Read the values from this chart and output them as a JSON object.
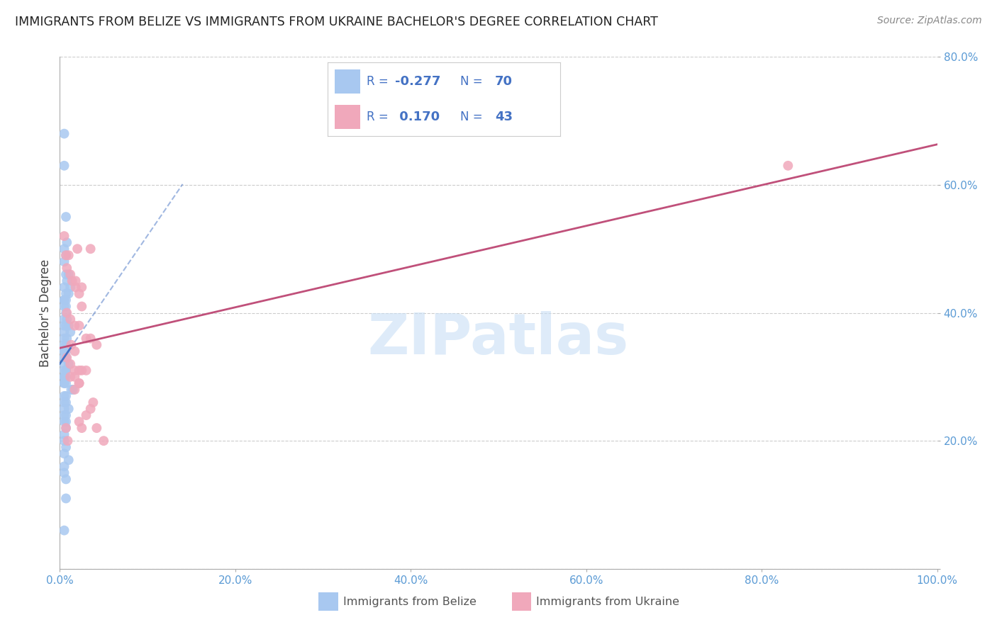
{
  "title": "IMMIGRANTS FROM BELIZE VS IMMIGRANTS FROM UKRAINE BACHELOR'S DEGREE CORRELATION CHART",
  "source": "Source: ZipAtlas.com",
  "ylabel": "Bachelor's Degree",
  "watermark": "ZIPatlas",
  "belize_color": "#a8c8f0",
  "ukraine_color": "#f0a8bb",
  "belize_line_color": "#4472c4",
  "ukraine_line_color": "#c0507a",
  "belize_R": -0.277,
  "belize_N": 70,
  "ukraine_R": 0.17,
  "ukraine_N": 43,
  "xlim": [
    0,
    1.0
  ],
  "ylim": [
    0,
    0.8
  ],
  "xticks": [
    0.0,
    0.2,
    0.4,
    0.6,
    0.8,
    1.0
  ],
  "yticks": [
    0.0,
    0.2,
    0.4,
    0.6,
    0.8
  ],
  "xticklabels": [
    "0.0%",
    "20.0%",
    "40.0%",
    "60.0%",
    "80.0%",
    "100.0%"
  ],
  "yticklabels": [
    "",
    "20.0%",
    "40.0%",
    "60.0%",
    "80.0%"
  ],
  "tick_color": "#5b9bd5",
  "background_color": "#ffffff",
  "grid_color": "#cccccc",
  "belize_x": [
    0.005,
    0.005,
    0.007,
    0.008,
    0.005,
    0.007,
    0.005,
    0.01,
    0.007,
    0.008,
    0.012,
    0.005,
    0.007,
    0.01,
    0.005,
    0.007,
    0.005,
    0.007,
    0.005,
    0.007,
    0.008,
    0.005,
    0.01,
    0.007,
    0.005,
    0.012,
    0.005,
    0.008,
    0.005,
    0.005,
    0.007,
    0.005,
    0.007,
    0.005,
    0.005,
    0.007,
    0.005,
    0.01,
    0.005,
    0.007,
    0.007,
    0.005,
    0.005,
    0.007,
    0.005,
    0.005,
    0.007,
    0.015,
    0.013,
    0.007,
    0.005,
    0.007,
    0.005,
    0.01,
    0.005,
    0.007,
    0.005,
    0.005,
    0.007,
    0.007,
    0.005,
    0.005,
    0.007,
    0.005,
    0.01,
    0.005,
    0.005,
    0.007,
    0.007,
    0.005
  ],
  "belize_y": [
    0.68,
    0.63,
    0.55,
    0.51,
    0.5,
    0.49,
    0.48,
    0.46,
    0.46,
    0.45,
    0.44,
    0.44,
    0.43,
    0.43,
    0.42,
    0.42,
    0.42,
    0.41,
    0.41,
    0.4,
    0.39,
    0.39,
    0.38,
    0.38,
    0.38,
    0.37,
    0.37,
    0.36,
    0.36,
    0.35,
    0.35,
    0.34,
    0.34,
    0.34,
    0.33,
    0.33,
    0.32,
    0.32,
    0.31,
    0.31,
    0.31,
    0.3,
    0.3,
    0.3,
    0.29,
    0.29,
    0.29,
    0.28,
    0.28,
    0.27,
    0.27,
    0.26,
    0.26,
    0.25,
    0.25,
    0.24,
    0.24,
    0.23,
    0.23,
    0.22,
    0.21,
    0.2,
    0.19,
    0.18,
    0.17,
    0.16,
    0.15,
    0.14,
    0.11,
    0.06
  ],
  "ukraine_x": [
    0.005,
    0.007,
    0.01,
    0.02,
    0.035,
    0.008,
    0.012,
    0.014,
    0.018,
    0.022,
    0.025,
    0.018,
    0.025,
    0.008,
    0.012,
    0.017,
    0.022,
    0.03,
    0.042,
    0.013,
    0.017,
    0.022,
    0.017,
    0.012,
    0.025,
    0.035,
    0.008,
    0.012,
    0.017,
    0.022,
    0.017,
    0.022,
    0.03,
    0.042,
    0.05,
    0.022,
    0.03,
    0.025,
    0.035,
    0.038,
    0.83,
    0.007,
    0.009
  ],
  "ukraine_y": [
    0.52,
    0.49,
    0.49,
    0.5,
    0.5,
    0.47,
    0.46,
    0.45,
    0.44,
    0.43,
    0.44,
    0.45,
    0.41,
    0.4,
    0.39,
    0.38,
    0.38,
    0.36,
    0.35,
    0.35,
    0.34,
    0.31,
    0.31,
    0.3,
    0.31,
    0.36,
    0.33,
    0.32,
    0.3,
    0.29,
    0.28,
    0.29,
    0.31,
    0.22,
    0.2,
    0.23,
    0.24,
    0.22,
    0.25,
    0.26,
    0.63,
    0.22,
    0.2
  ]
}
